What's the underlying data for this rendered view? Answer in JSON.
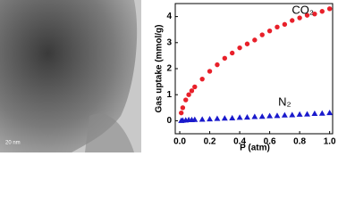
{
  "micrograph": {
    "scale_bar": "20 nm"
  },
  "chart_data": {
    "type": "scatter",
    "xlabel": "P (atm)",
    "ylabel": "Gas uptake (mmol/g)",
    "xlim": [
      -0.03,
      1.02
    ],
    "ylim": [
      -0.5,
      4.5
    ],
    "xticks": [
      {
        "value": 0,
        "label": "0.0"
      },
      0.2,
      0.4,
      0.6,
      0.8,
      {
        "value": 1,
        "label": "1.0"
      }
    ],
    "yticks": [
      0,
      1,
      2,
      3,
      4
    ],
    "x": [
      0.01,
      0.02,
      0.04,
      0.06,
      0.08,
      0.1,
      0.15,
      0.2,
      0.25,
      0.3,
      0.35,
      0.4,
      0.45,
      0.5,
      0.55,
      0.6,
      0.65,
      0.7,
      0.75,
      0.8,
      0.85,
      0.9,
      0.95,
      1.0
    ],
    "series": [
      {
        "name": "CO₂",
        "color": "#e8202a",
        "marker": "circle",
        "values": [
          0.3,
          0.5,
          0.8,
          1.0,
          1.15,
          1.3,
          1.6,
          1.9,
          2.15,
          2.4,
          2.6,
          2.8,
          2.95,
          3.1,
          3.3,
          3.45,
          3.6,
          3.7,
          3.85,
          3.95,
          4.05,
          4.1,
          4.2,
          4.3
        ]
      },
      {
        "name": "N₂",
        "color": "#1a1acc",
        "marker": "triangle",
        "values": [
          0.0,
          0.01,
          0.02,
          0.03,
          0.03,
          0.04,
          0.05,
          0.06,
          0.08,
          0.09,
          0.1,
          0.12,
          0.13,
          0.15,
          0.16,
          0.18,
          0.19,
          0.21,
          0.22,
          0.24,
          0.25,
          0.27,
          0.28,
          0.3
        ]
      }
    ],
    "label_positions": null
  }
}
